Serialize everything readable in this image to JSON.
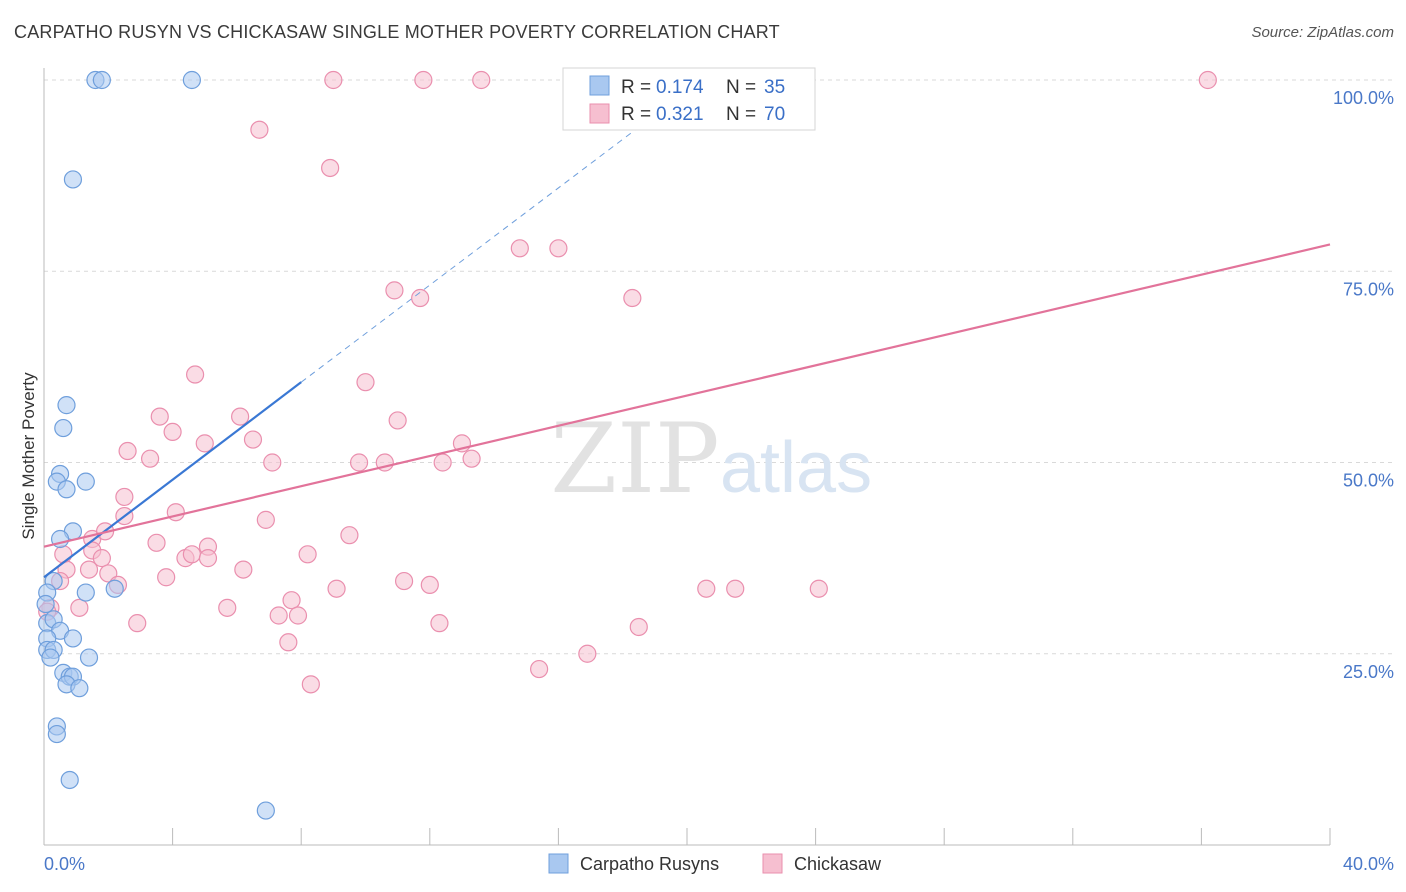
{
  "title": "CARPATHO RUSYN VS CHICKASAW SINGLE MOTHER POVERTY CORRELATION CHART",
  "source": "Source: ZipAtlas.com",
  "watermark": {
    "zip": "ZIP",
    "atlas": "atlas"
  },
  "colors": {
    "blue_fill": "#a9c8f0",
    "blue_stroke": "#6f9fdc",
    "blue_line": "#3a78d4",
    "pink_fill": "#f6bfd0",
    "pink_stroke": "#ea8fae",
    "pink_line": "#e2739a",
    "grid": "#d9d9d9",
    "axis_text": "#4a78c8"
  },
  "legend": {
    "rows": [
      {
        "r_label": "R =",
        "r_value": "0.174",
        "n_label": "N =",
        "n_value": "35",
        "series": "blue"
      },
      {
        "r_label": "R =",
        "r_value": "0.321",
        "n_label": "N =",
        "n_value": "70",
        "series": "pink"
      }
    ]
  },
  "chart_data": {
    "type": "scatter",
    "title": "CARPATHO RUSYN VS CHICKASAW SINGLE MOTHER POVERTY CORRELATION CHART",
    "xlabel": "",
    "ylabel": "Single Mother Poverty",
    "xlim": [
      0,
      40
    ],
    "ylim": [
      0,
      102
    ],
    "x_tick_labels": {
      "left": "0.0%",
      "right": "40.0%"
    },
    "y_ticks": [
      25,
      50,
      75,
      100
    ],
    "y_tick_labels": [
      "25.0%",
      "50.0%",
      "75.0%",
      "100.0%"
    ],
    "series": [
      {
        "name": "Carpatho Rusyns",
        "color": "blue",
        "trend": {
          "x0": 0,
          "y0": 35.0,
          "x1": 8.0,
          "y1": 60.5,
          "dashed_to_x": 19.5,
          "dashed_to_y": 97.0
        },
        "points": [
          [
            1.6,
            100
          ],
          [
            1.8,
            100
          ],
          [
            4.6,
            100
          ],
          [
            0.9,
            87
          ],
          [
            0.7,
            57.5
          ],
          [
            0.6,
            54.5
          ],
          [
            0.5,
            48.5
          ],
          [
            0.4,
            47.5
          ],
          [
            0.7,
            46.5
          ],
          [
            1.3,
            47.5
          ],
          [
            0.9,
            41
          ],
          [
            0.5,
            40
          ],
          [
            0.3,
            34.5
          ],
          [
            1.3,
            33
          ],
          [
            2.2,
            33.5
          ],
          [
            0.1,
            33
          ],
          [
            0.1,
            29
          ],
          [
            0.3,
            29.5
          ],
          [
            0.5,
            28
          ],
          [
            0.9,
            27
          ],
          [
            0.1,
            27
          ],
          [
            0.1,
            25.5
          ],
          [
            0.3,
            25.5
          ],
          [
            0.2,
            24.5
          ],
          [
            1.4,
            24.5
          ],
          [
            0.6,
            22.5
          ],
          [
            0.8,
            22
          ],
          [
            0.9,
            22
          ],
          [
            0.7,
            21
          ],
          [
            1.1,
            20.5
          ],
          [
            0.4,
            15.5
          ],
          [
            0.4,
            14.5
          ],
          [
            0.8,
            8.5
          ],
          [
            6.9,
            4.5
          ],
          [
            0.05,
            31.5
          ]
        ]
      },
      {
        "name": "Chickasaw",
        "color": "pink",
        "trend": {
          "x0": 0,
          "y0": 39.0,
          "x1": 40,
          "y1": 78.5
        },
        "points": [
          [
            9,
            100
          ],
          [
            11.8,
            100
          ],
          [
            13.6,
            100
          ],
          [
            36.2,
            100
          ],
          [
            6.7,
            93.5
          ],
          [
            8.9,
            88.5
          ],
          [
            14.8,
            78
          ],
          [
            16,
            78
          ],
          [
            10.9,
            72.5
          ],
          [
            11.7,
            71.5
          ],
          [
            18.3,
            71.5
          ],
          [
            4.7,
            61.5
          ],
          [
            10,
            60.5
          ],
          [
            3.6,
            56
          ],
          [
            6.1,
            56
          ],
          [
            11,
            55.5
          ],
          [
            4,
            54
          ],
          [
            2.6,
            51.5
          ],
          [
            5,
            52.5
          ],
          [
            6.5,
            53
          ],
          [
            3.3,
            50.5
          ],
          [
            7.1,
            50
          ],
          [
            9.8,
            50
          ],
          [
            10.6,
            50
          ],
          [
            12.4,
            50
          ],
          [
            13.3,
            50.5
          ],
          [
            13,
            52.5
          ],
          [
            2.5,
            45.5
          ],
          [
            4.1,
            43.5
          ],
          [
            2.5,
            43
          ],
          [
            6.9,
            42.5
          ],
          [
            1.5,
            40
          ],
          [
            1.9,
            41
          ],
          [
            3.5,
            39.5
          ],
          [
            5.1,
            39
          ],
          [
            9.5,
            40.5
          ],
          [
            0.6,
            38
          ],
          [
            1.5,
            38.5
          ],
          [
            1.8,
            37.5
          ],
          [
            4.4,
            37.5
          ],
          [
            4.6,
            38
          ],
          [
            5.1,
            37.5
          ],
          [
            8.2,
            38
          ],
          [
            0.7,
            36
          ],
          [
            1.4,
            36
          ],
          [
            2,
            35.5
          ],
          [
            6.2,
            36
          ],
          [
            0.5,
            34.5
          ],
          [
            2.3,
            34
          ],
          [
            3.8,
            35
          ],
          [
            11.2,
            34.5
          ],
          [
            12,
            34
          ],
          [
            9.1,
            33.5
          ],
          [
            20.6,
            33.5
          ],
          [
            21.5,
            33.5
          ],
          [
            24.1,
            33.5
          ],
          [
            7.7,
            32
          ],
          [
            5.7,
            31
          ],
          [
            7.3,
            30
          ],
          [
            7.9,
            30
          ],
          [
            1.1,
            31
          ],
          [
            0.2,
            31
          ],
          [
            0.1,
            30.5
          ],
          [
            2.9,
            29
          ],
          [
            12.3,
            29
          ],
          [
            18.5,
            28.5
          ],
          [
            7.6,
            26.5
          ],
          [
            16.9,
            25
          ],
          [
            15.4,
            23
          ],
          [
            8.3,
            21
          ]
        ]
      }
    ]
  },
  "bottom_legend": [
    {
      "label": "Carpatho Rusyns",
      "series": "blue"
    },
    {
      "label": "Chickasaw",
      "series": "pink"
    }
  ]
}
